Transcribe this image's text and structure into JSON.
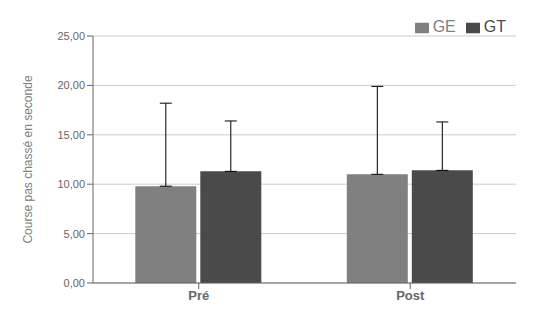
{
  "chart_data": {
    "type": "bar",
    "categories": [
      "Pré",
      "Post"
    ],
    "series": [
      {
        "name": "GE",
        "color": "#808080",
        "values": [
          9.8,
          11.0
        ],
        "errors": [
          8.4,
          8.9
        ]
      },
      {
        "name": "GT",
        "color": "#4a4a4a",
        "values": [
          11.3,
          11.4
        ],
        "errors": [
          5.1,
          4.9
        ]
      }
    ],
    "ylabel": "Course pas chassé en seconde",
    "ylim": [
      0,
      25
    ],
    "yticks": [
      {
        "value": 0.0,
        "label": "0,00"
      },
      {
        "value": 5.0,
        "label": "5,00"
      },
      {
        "value": 10.0,
        "label": "10,00"
      },
      {
        "value": 15.0,
        "label": "15,00"
      },
      {
        "value": 20.0,
        "label": "20,00"
      },
      {
        "value": 25.0,
        "label": "25,00"
      }
    ],
    "grid": true,
    "legend": "upper right"
  }
}
